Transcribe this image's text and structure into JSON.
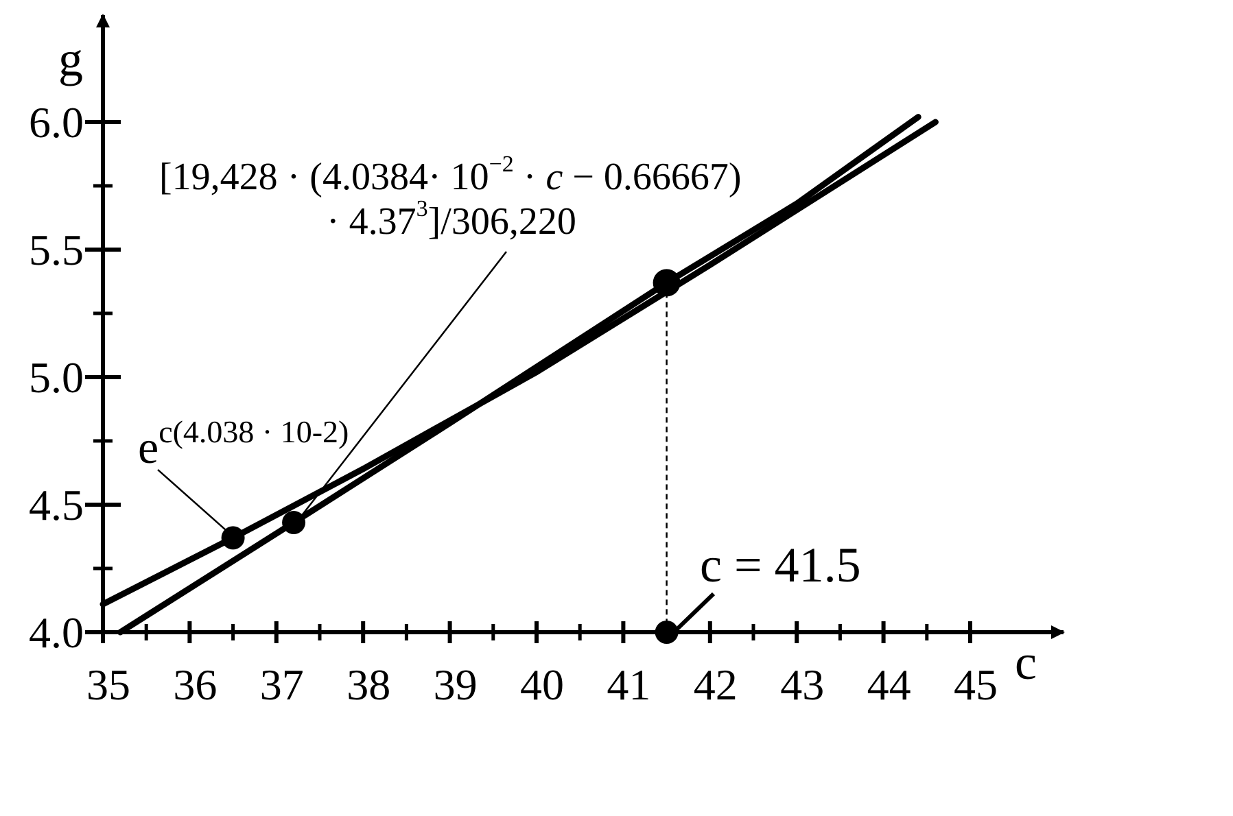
{
  "chart_data": {
    "type": "line",
    "xlabel": "c",
    "ylabel": "g",
    "xlim": [
      35,
      45
    ],
    "ylim": [
      4.0,
      6.0
    ],
    "x_ticks": [
      "35",
      "36",
      "37",
      "38",
      "39",
      "40",
      "41",
      "42",
      "43",
      "44",
      "45"
    ],
    "y_ticks": [
      "4.0",
      "4.5",
      "5.0",
      "5.5",
      "6.0"
    ],
    "grid": false,
    "series": [
      {
        "x": [
          35.0,
          36.5,
          38.0,
          40.0,
          42.0,
          44.6
        ],
        "y": [
          4.11,
          4.37,
          4.64,
          5.02,
          5.44,
          6.0
        ]
      },
      {
        "x": [
          35.2,
          37.2,
          39.0,
          41.5,
          43.0,
          44.4
        ],
        "y": [
          4.0,
          4.43,
          4.82,
          5.37,
          5.68,
          6.02
        ]
      }
    ],
    "points": [
      {
        "x": 36.5,
        "y": 4.37
      },
      {
        "x": 37.2,
        "y": 4.43
      },
      {
        "x": 41.5,
        "y": 5.37
      },
      {
        "x": 41.5,
        "y": 4.0
      }
    ],
    "annotations": {
      "polynomial_line1_a": "[19,428 · (4.0384· 10",
      "polynomial_line1_sup": "−2",
      "polynomial_line1_b": " · ",
      "polynomial_line1_var": "c",
      "polynomial_line1_c": " − 0.66667)",
      "polynomial_line2_a": "· 4.37",
      "polynomial_line2_sup": "3",
      "polynomial_line2_b": "]/306,220",
      "exp_base": "e",
      "exp_sup": "c(4.038 · 10-2)",
      "marker_label": "c = 41.5"
    }
  }
}
